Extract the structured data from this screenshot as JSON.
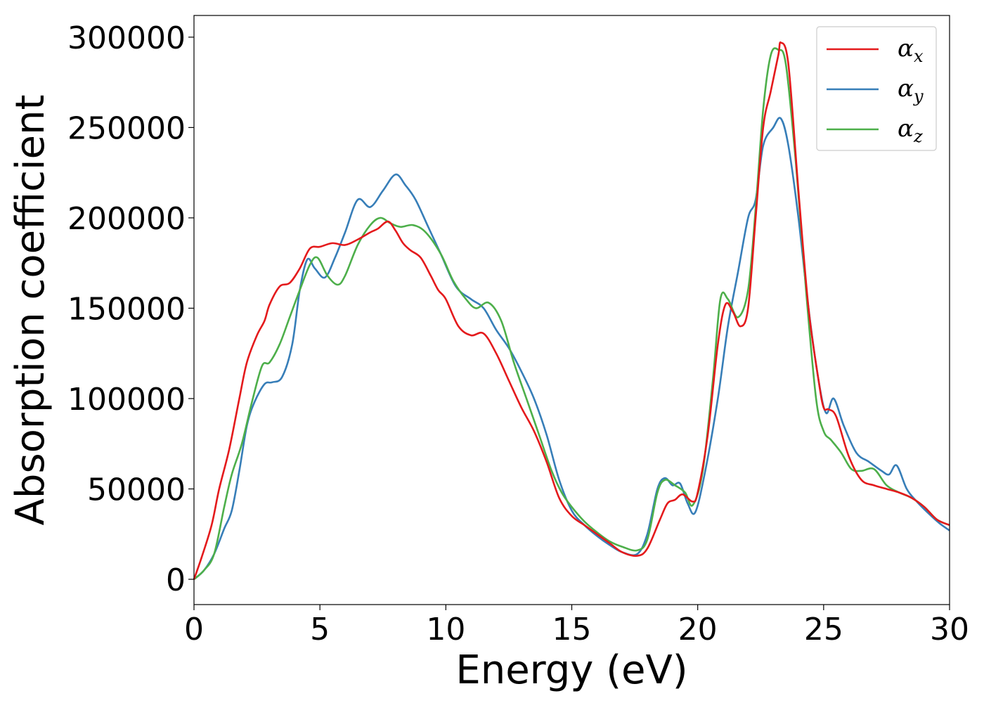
{
  "chart_data": {
    "type": "line",
    "title": "",
    "xlabel": "Energy (eV)",
    "ylabel": "Absorption coefficient",
    "xlim": [
      0,
      30
    ],
    "ylim": [
      -14000,
      312000
    ],
    "xticks": [
      0,
      5,
      10,
      15,
      20,
      25,
      30
    ],
    "yticks": [
      0,
      50000,
      100000,
      150000,
      200000,
      250000,
      300000
    ],
    "grid": false,
    "legend_position": "top-right",
    "series": [
      {
        "name_base": "α",
        "name_sub": "x",
        "color": "#e41a1c",
        "points": [
          [
            0,
            0
          ],
          [
            0.3,
            12000
          ],
          [
            0.7,
            30000
          ],
          [
            1.0,
            50000
          ],
          [
            1.4,
            72000
          ],
          [
            1.8,
            100000
          ],
          [
            2.1,
            120000
          ],
          [
            2.5,
            135000
          ],
          [
            2.8,
            143000
          ],
          [
            3.0,
            152000
          ],
          [
            3.4,
            162000
          ],
          [
            3.8,
            164000
          ],
          [
            4.2,
            172000
          ],
          [
            4.6,
            183000
          ],
          [
            5.0,
            184000
          ],
          [
            5.5,
            186000
          ],
          [
            6.0,
            185000
          ],
          [
            6.5,
            188000
          ],
          [
            7.0,
            192000
          ],
          [
            7.3,
            194000
          ],
          [
            7.7,
            198000
          ],
          [
            8.0,
            193000
          ],
          [
            8.3,
            186000
          ],
          [
            8.6,
            182000
          ],
          [
            9.0,
            178000
          ],
          [
            9.4,
            168000
          ],
          [
            9.7,
            160000
          ],
          [
            10.0,
            155000
          ],
          [
            10.5,
            140000
          ],
          [
            11.0,
            135000
          ],
          [
            11.5,
            136000
          ],
          [
            12.0,
            125000
          ],
          [
            12.5,
            110000
          ],
          [
            13.0,
            95000
          ],
          [
            13.5,
            82000
          ],
          [
            14.0,
            65000
          ],
          [
            14.5,
            45000
          ],
          [
            15.0,
            35000
          ],
          [
            15.5,
            30000
          ],
          [
            16.0,
            25000
          ],
          [
            16.5,
            20000
          ],
          [
            17.0,
            15000
          ],
          [
            17.6,
            13000
          ],
          [
            18.0,
            17000
          ],
          [
            18.5,
            33000
          ],
          [
            18.8,
            42000
          ],
          [
            19.1,
            44000
          ],
          [
            19.4,
            47000
          ],
          [
            19.8,
            43000
          ],
          [
            20.0,
            48000
          ],
          [
            20.4,
            80000
          ],
          [
            20.8,
            130000
          ],
          [
            21.1,
            152000
          ],
          [
            21.4,
            148000
          ],
          [
            21.7,
            140000
          ],
          [
            22.0,
            150000
          ],
          [
            22.3,
            200000
          ],
          [
            22.6,
            250000
          ],
          [
            22.9,
            270000
          ],
          [
            23.2,
            290000
          ],
          [
            23.3,
            297000
          ],
          [
            23.6,
            285000
          ],
          [
            24.0,
            215000
          ],
          [
            24.4,
            150000
          ],
          [
            24.8,
            110000
          ],
          [
            25.0,
            95000
          ],
          [
            25.2,
            94000
          ],
          [
            25.5,
            90000
          ],
          [
            26.0,
            68000
          ],
          [
            26.5,
            55000
          ],
          [
            27.0,
            52000
          ],
          [
            27.5,
            50000
          ],
          [
            28.0,
            48000
          ],
          [
            28.5,
            45000
          ],
          [
            29.0,
            40000
          ],
          [
            29.5,
            33000
          ],
          [
            30.0,
            30000
          ]
        ]
      },
      {
        "name_base": "α",
        "name_sub": "y",
        "color": "#377eb8",
        "points": [
          [
            0,
            0
          ],
          [
            0.4,
            5000
          ],
          [
            0.8,
            14000
          ],
          [
            1.2,
            28000
          ],
          [
            1.5,
            38000
          ],
          [
            1.8,
            60000
          ],
          [
            2.1,
            85000
          ],
          [
            2.4,
            98000
          ],
          [
            2.8,
            108000
          ],
          [
            3.1,
            109000
          ],
          [
            3.5,
            112000
          ],
          [
            3.9,
            130000
          ],
          [
            4.2,
            160000
          ],
          [
            4.5,
            177000
          ],
          [
            4.8,
            172000
          ],
          [
            5.2,
            167000
          ],
          [
            5.6,
            178000
          ],
          [
            6.0,
            192000
          ],
          [
            6.5,
            210000
          ],
          [
            7.0,
            206000
          ],
          [
            7.5,
            215000
          ],
          [
            8.0,
            224000
          ],
          [
            8.4,
            218000
          ],
          [
            8.8,
            210000
          ],
          [
            9.3,
            195000
          ],
          [
            9.8,
            180000
          ],
          [
            10.4,
            162000
          ],
          [
            11.0,
            155000
          ],
          [
            11.5,
            150000
          ],
          [
            12.0,
            138000
          ],
          [
            12.5,
            128000
          ],
          [
            13.0,
            115000
          ],
          [
            13.5,
            100000
          ],
          [
            14.0,
            80000
          ],
          [
            14.5,
            55000
          ],
          [
            15.0,
            38000
          ],
          [
            15.5,
            30000
          ],
          [
            16.0,
            24000
          ],
          [
            16.5,
            19000
          ],
          [
            17.0,
            15000
          ],
          [
            17.6,
            14000
          ],
          [
            18.0,
            25000
          ],
          [
            18.4,
            50000
          ],
          [
            18.7,
            56000
          ],
          [
            19.0,
            52000
          ],
          [
            19.3,
            53000
          ],
          [
            19.6,
            42000
          ],
          [
            19.9,
            37000
          ],
          [
            20.3,
            60000
          ],
          [
            20.8,
            100000
          ],
          [
            21.2,
            140000
          ],
          [
            21.6,
            170000
          ],
          [
            22.0,
            200000
          ],
          [
            22.3,
            210000
          ],
          [
            22.6,
            240000
          ],
          [
            23.0,
            250000
          ],
          [
            23.3,
            255000
          ],
          [
            23.6,
            240000
          ],
          [
            24.0,
            200000
          ],
          [
            24.4,
            150000
          ],
          [
            24.8,
            110000
          ],
          [
            25.1,
            92000
          ],
          [
            25.4,
            100000
          ],
          [
            25.8,
            85000
          ],
          [
            26.3,
            70000
          ],
          [
            26.8,
            65000
          ],
          [
            27.3,
            60000
          ],
          [
            27.6,
            58000
          ],
          [
            27.9,
            63000
          ],
          [
            28.3,
            50000
          ],
          [
            28.7,
            43000
          ],
          [
            29.2,
            36000
          ],
          [
            29.6,
            31000
          ],
          [
            30.0,
            27000
          ]
        ]
      },
      {
        "name_base": "α",
        "name_sub": "z",
        "color": "#4daf4a",
        "points": [
          [
            0,
            0
          ],
          [
            0.4,
            5000
          ],
          [
            0.8,
            14000
          ],
          [
            1.2,
            40000
          ],
          [
            1.5,
            58000
          ],
          [
            1.9,
            75000
          ],
          [
            2.3,
            98000
          ],
          [
            2.7,
            118000
          ],
          [
            3.0,
            120000
          ],
          [
            3.4,
            130000
          ],
          [
            3.8,
            145000
          ],
          [
            4.2,
            160000
          ],
          [
            4.6,
            174000
          ],
          [
            4.9,
            178000
          ],
          [
            5.3,
            168000
          ],
          [
            5.7,
            163000
          ],
          [
            6.0,
            168000
          ],
          [
            6.5,
            185000
          ],
          [
            7.0,
            196000
          ],
          [
            7.4,
            200000
          ],
          [
            7.8,
            197000
          ],
          [
            8.2,
            195000
          ],
          [
            8.7,
            196000
          ],
          [
            9.2,
            192000
          ],
          [
            9.8,
            180000
          ],
          [
            10.3,
            165000
          ],
          [
            10.8,
            155000
          ],
          [
            11.2,
            150000
          ],
          [
            11.7,
            153000
          ],
          [
            12.2,
            143000
          ],
          [
            12.7,
            120000
          ],
          [
            13.2,
            100000
          ],
          [
            13.7,
            80000
          ],
          [
            14.2,
            60000
          ],
          [
            14.6,
            48000
          ],
          [
            15.0,
            40000
          ],
          [
            15.5,
            32000
          ],
          [
            16.0,
            26000
          ],
          [
            16.5,
            21000
          ],
          [
            17.0,
            18000
          ],
          [
            17.6,
            16000
          ],
          [
            18.0,
            22000
          ],
          [
            18.4,
            48000
          ],
          [
            18.7,
            55000
          ],
          [
            19.1,
            52000
          ],
          [
            19.5,
            48000
          ],
          [
            19.8,
            41000
          ],
          [
            20.2,
            60000
          ],
          [
            20.6,
            110000
          ],
          [
            20.9,
            155000
          ],
          [
            21.2,
            155000
          ],
          [
            21.6,
            145000
          ],
          [
            22.0,
            160000
          ],
          [
            22.3,
            205000
          ],
          [
            22.6,
            260000
          ],
          [
            22.9,
            290000
          ],
          [
            23.2,
            293000
          ],
          [
            23.5,
            285000
          ],
          [
            23.9,
            230000
          ],
          [
            24.3,
            160000
          ],
          [
            24.7,
            100000
          ],
          [
            25.0,
            82000
          ],
          [
            25.3,
            77000
          ],
          [
            25.7,
            70000
          ],
          [
            26.1,
            61000
          ],
          [
            26.5,
            60000
          ],
          [
            27.0,
            61000
          ],
          [
            27.5,
            52000
          ],
          [
            28.0,
            48000
          ],
          [
            28.5,
            45000
          ],
          [
            29.0,
            40000
          ],
          [
            29.5,
            33000
          ],
          [
            30.0,
            30000
          ]
        ]
      }
    ]
  }
}
